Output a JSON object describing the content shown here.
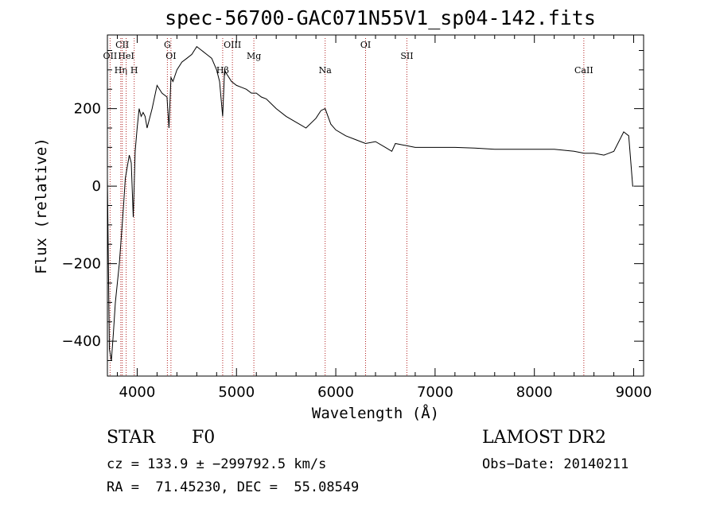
{
  "title": "spec-56700-GAC071N55V1_sp04-142.fits",
  "xlabel": "Wavelength (Å)",
  "ylabel": "Flux (relative)",
  "info": {
    "class": "STAR",
    "subclass": "F0",
    "survey": "LAMOST DR2",
    "cz": "cz = 133.9 ± −299792.5 km/s",
    "obs_date": "Obs−Date: 20140211",
    "radec": "RA =  71.45230, DEC =  55.08549"
  },
  "chart_data": {
    "type": "line",
    "title": "spec-56700-GAC071N55V1_sp04-142.fits",
    "xlabel": "Wavelength (Å)",
    "ylabel": "Flux (relative)",
    "xlim": [
      3700,
      9100
    ],
    "ylim": [
      -490,
      390
    ],
    "xticks": [
      4000,
      5000,
      6000,
      7000,
      8000,
      9000
    ],
    "yticks": [
      -400,
      -200,
      0,
      200
    ],
    "line_color": "#000000",
    "marker_color": "#b22222",
    "series": [
      {
        "x": [
          3700,
          3720,
          3740,
          3760,
          3780,
          3800,
          3820,
          3840,
          3860,
          3880,
          3900,
          3920,
          3940,
          3960,
          3980,
          4000,
          4020,
          4040,
          4060,
          4080,
          4100,
          4150,
          4200,
          4250,
          4300,
          4320,
          4340,
          4360,
          4400,
          4450,
          4500,
          4550,
          4600,
          4650,
          4700,
          4750,
          4800,
          4830,
          4861,
          4880,
          4900,
          4950,
          5000,
          5050,
          5100,
          5150,
          5200,
          5250,
          5300,
          5400,
          5500,
          5600,
          5700,
          5800,
          5850,
          5893,
          5950,
          6000,
          6100,
          6200,
          6300,
          6400,
          6500,
          6564,
          6600,
          6700,
          6800,
          6900,
          7000,
          7200,
          7400,
          7600,
          7800,
          8000,
          8200,
          8400,
          8500,
          8600,
          8700,
          8800,
          8850,
          8900,
          8950,
          8990,
          9000
        ],
        "y": [
          20,
          -420,
          -450,
          -380,
          -300,
          -250,
          -200,
          -130,
          -60,
          20,
          50,
          80,
          60,
          -80,
          90,
          150,
          200,
          180,
          190,
          180,
          150,
          200,
          260,
          240,
          230,
          150,
          280,
          270,
          300,
          320,
          330,
          340,
          360,
          350,
          340,
          330,
          300,
          270,
          180,
          300,
          290,
          270,
          260,
          255,
          250,
          240,
          240,
          230,
          225,
          200,
          180,
          165,
          150,
          175,
          195,
          200,
          160,
          145,
          130,
          120,
          110,
          115,
          100,
          90,
          110,
          105,
          100,
          100,
          100,
          100,
          98,
          95,
          95,
          95,
          95,
          90,
          85,
          85,
          80,
          90,
          115,
          140,
          130,
          0,
          0
        ]
      }
    ],
    "line_markers": [
      {
        "label": "OII",
        "x": 3727
      },
      {
        "label": "Hη",
        "x": 3835
      },
      {
        "label": "CII",
        "x": 3850
      },
      {
        "label": "HeI",
        "x": 3889
      },
      {
        "label": "H",
        "x": 3970
      },
      {
        "label": "G",
        "x": 4304
      },
      {
        "label": "OI",
        "x": 4340
      },
      {
        "label": "Hβ",
        "x": 4861
      },
      {
        "label": "OIII",
        "x": 4959
      },
      {
        "label": "Mg",
        "x": 5175
      },
      {
        "label": "Na",
        "x": 5893
      },
      {
        "label": "OI",
        "x": 6300
      },
      {
        "label": "SII",
        "x": 6716
      },
      {
        "label": "CaII",
        "x": 8498
      }
    ]
  }
}
